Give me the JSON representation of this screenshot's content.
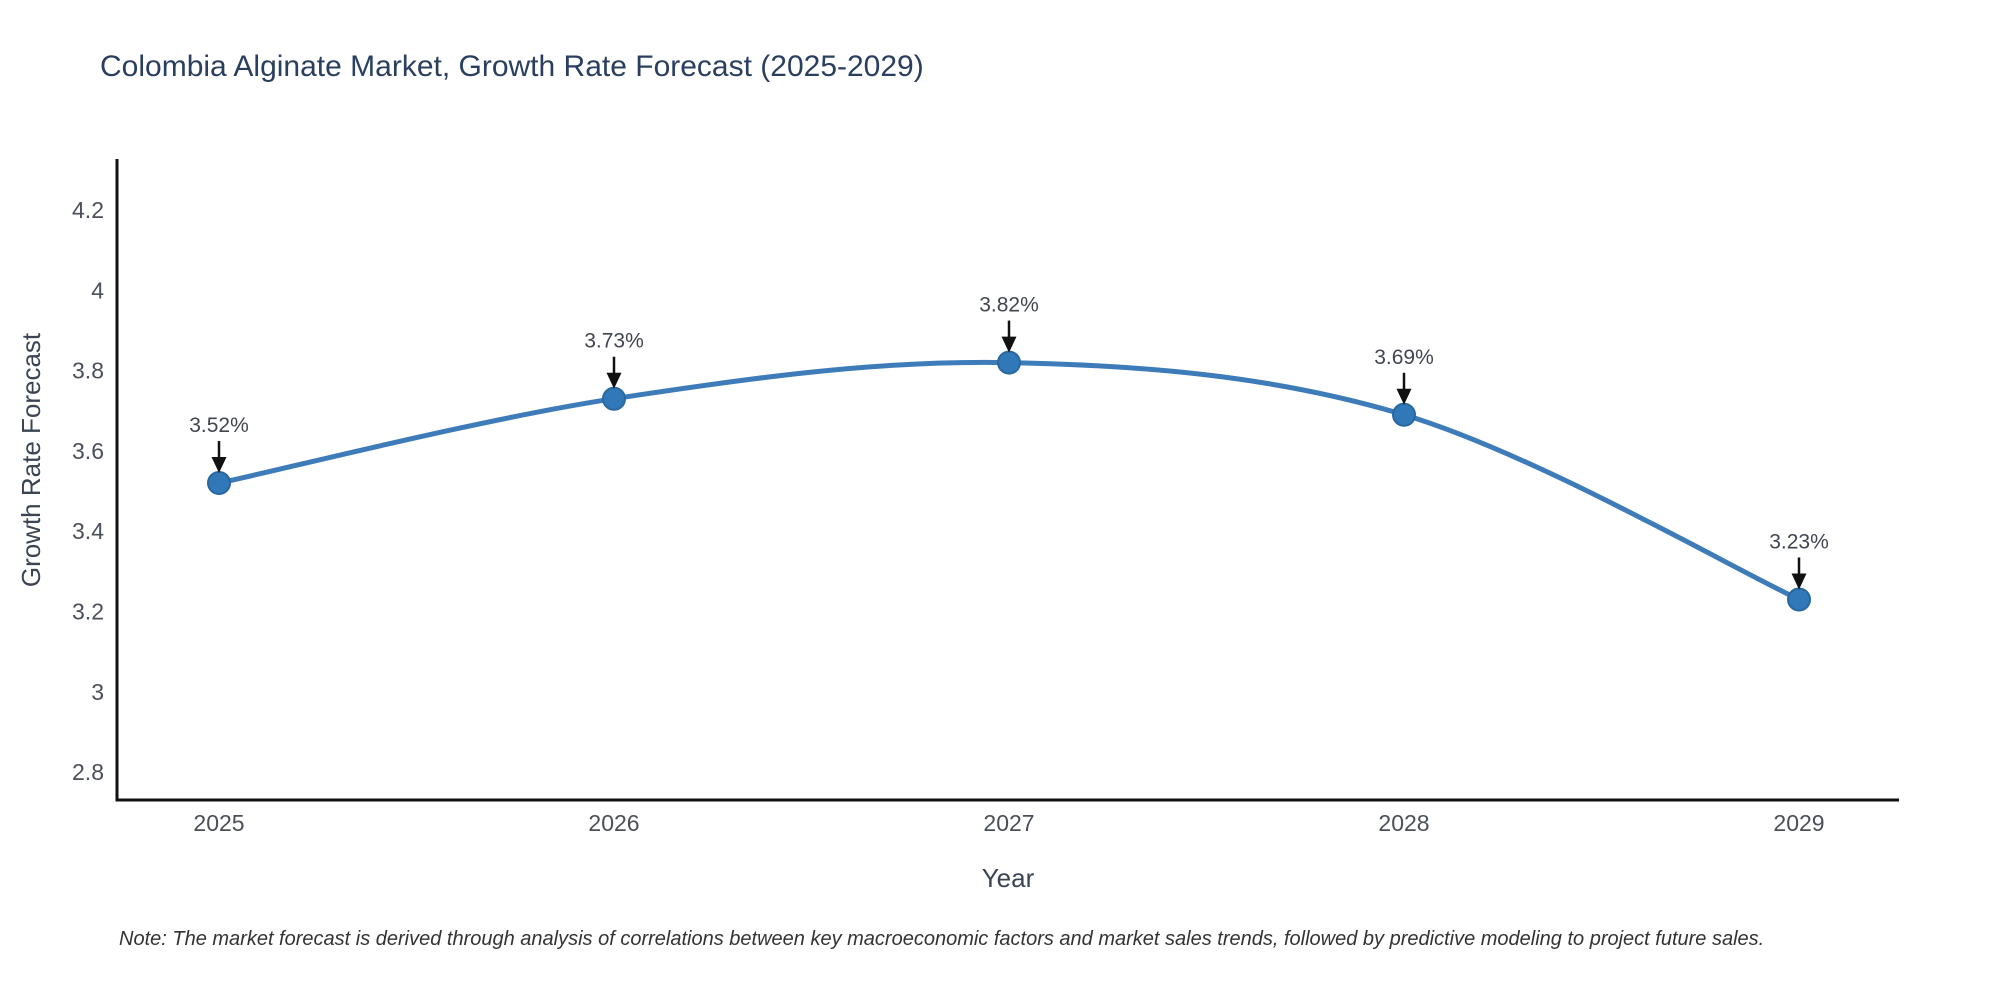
{
  "page": {
    "note": "Note: The market forecast is derived through analysis of correlations between key macroeconomic factors and market sales trends, followed by predictive modeling to project future sales."
  },
  "chart_data": {
    "type": "line",
    "title": "Colombia Alginate Market, Growth Rate Forecast (2025-2029)",
    "xlabel": "Year",
    "ylabel": "Growth Rate Forecast",
    "categories": [
      "2025",
      "2026",
      "2027",
      "2028",
      "2029"
    ],
    "series": [
      {
        "name": "Growth Rate Forecast",
        "values": [
          3.52,
          3.73,
          3.82,
          3.69,
          3.23
        ]
      }
    ],
    "data_labels": [
      "3.52%",
      "3.73%",
      "3.82%",
      "3.69%",
      "3.23%"
    ],
    "yticks": [
      2.8,
      3,
      3.2,
      3.4,
      3.6,
      3.8,
      4,
      4.2
    ],
    "ylim": [
      2.73,
      4.33
    ],
    "line_shape": "spline",
    "grid": false,
    "legend_position": "none",
    "colors": {
      "line": "#3e7cb9",
      "marker_fill": "#3178b8",
      "marker_edge": "#28689f",
      "axis_line": "#111111",
      "arrow": "#111111",
      "title_text": "#2a3f5f",
      "tick_text": "#4a4f59",
      "annotation_text": "#404550",
      "note_text": "#333333"
    }
  }
}
